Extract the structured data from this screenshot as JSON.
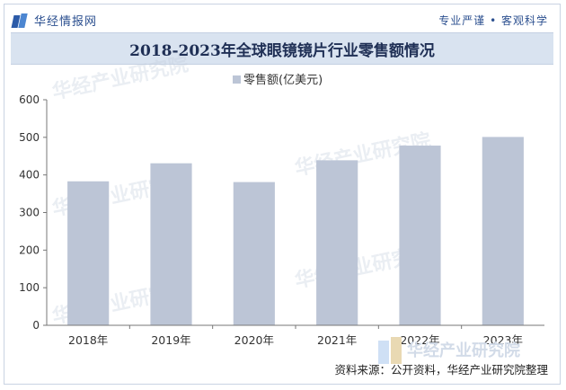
{
  "header": {
    "brand_name": "华经情报网",
    "slogan": "专业严谨 • 客观科学"
  },
  "chart_data": {
    "type": "bar",
    "title": "2018-2023年全球眼镜镜片行业零售额情况",
    "categories": [
      "2018年",
      "2019年",
      "2020年",
      "2021年",
      "2022年",
      "2023年"
    ],
    "series": [
      {
        "name": "零售额(亿美元)",
        "values": [
          383,
          431,
          381,
          439,
          478,
          501
        ],
        "color": "#bcc5d6"
      }
    ],
    "ylim": [
      0,
      600
    ],
    "yticks": [
      0,
      100,
      200,
      300,
      400,
      500,
      600
    ],
    "grid": false,
    "legend": "top-center"
  },
  "footer": {
    "source": "资料来源：公开资料，华经产业研究院整理",
    "logo_text": "华经产业研究院"
  },
  "colors": {
    "bar": "#bcc5d6",
    "axis": "#555555",
    "title_bg": "#d9e3f0"
  }
}
